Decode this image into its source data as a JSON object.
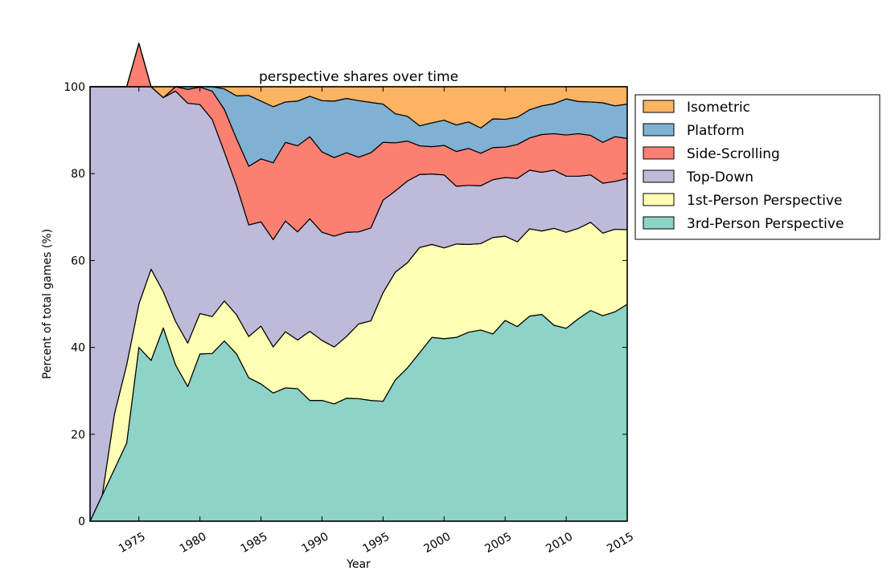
{
  "chart_data": {
    "type": "area",
    "stacked": true,
    "title": "perspective shares over time",
    "xlabel": "Year",
    "ylabel": "Percent of total games (%)",
    "xlim": [
      1971,
      2015
    ],
    "ylim": [
      0,
      100
    ],
    "xticks": [
      1975,
      1980,
      1985,
      1990,
      1995,
      2000,
      2005,
      2010,
      2015
    ],
    "yticks": [
      0,
      20,
      40,
      60,
      80,
      100
    ],
    "grid": false,
    "legend_position": "upper-right-outside",
    "x": [
      1971,
      1972,
      1973,
      1974,
      1975,
      1976,
      1977,
      1978,
      1979,
      1980,
      1981,
      1982,
      1983,
      1984,
      1985,
      1986,
      1987,
      1988,
      1989,
      1990,
      1991,
      1992,
      1993,
      1994,
      1995,
      1996,
      1997,
      1998,
      1999,
      2000,
      2001,
      2002,
      2003,
      2004,
      2005,
      2006,
      2007,
      2008,
      2009,
      2010,
      2011,
      2012,
      2013,
      2014,
      2015
    ],
    "series": [
      {
        "name": "3rd-Person Perspective",
        "color": "#8dd3c7",
        "values": [
          0,
          6,
          12,
          18,
          40,
          37,
          44.5,
          36,
          31,
          38.5,
          38.6,
          41.5,
          38.5,
          33,
          31.6,
          29.5,
          30.7,
          30.5,
          27.8,
          27.8,
          27,
          28.3,
          28.2,
          27.8,
          27.6,
          32.5,
          35.3,
          38.8,
          42.3,
          42,
          42.3,
          43.5,
          44,
          43.1,
          46.2,
          44.8,
          47.2,
          47.6,
          45.1,
          44.4,
          46.6,
          48.5,
          47.3,
          48.2,
          49.9
        ]
      },
      {
        "name": "1st-Person Perspective",
        "color": "#ffffb3",
        "values": [
          0,
          0,
          12.7,
          18,
          10,
          21,
          8.3,
          10,
          10,
          9.3,
          8.5,
          9.2,
          9,
          9.5,
          13.3,
          10.6,
          12.9,
          11.2,
          15.9,
          13.8,
          13.1,
          14.2,
          17.2,
          18.3,
          25,
          24.8,
          24.2,
          24.2,
          21.4,
          20.9,
          21.5,
          20.2,
          19.9,
          22.2,
          19.4,
          19.5,
          20.1,
          19.2,
          22.3,
          22.1,
          20.8,
          20.3,
          19,
          19,
          17.2
        ]
      },
      {
        "name": "Top-Down",
        "color": "#bebada",
        "values": [
          100,
          94,
          75.3,
          64,
          50,
          42,
          44.7,
          53,
          55.2,
          48.1,
          45.4,
          34.3,
          29.7,
          25.7,
          24,
          24.7,
          25.5,
          24.9,
          25.9,
          24.9,
          25.5,
          24,
          21.2,
          21.4,
          21.3,
          18.7,
          18.8,
          16.8,
          16.2,
          16.8,
          13.3,
          13.6,
          13.3,
          13.3,
          13.5,
          14.6,
          13.5,
          13.5,
          13.4,
          12.9,
          12,
          10.9,
          11.5,
          11,
          11.8
        ]
      },
      {
        "name": "Side-Scrolling",
        "color": "#fb8072",
        "values": [
          0,
          0,
          0,
          0,
          10,
          0,
          0,
          1,
          3.2,
          4,
          6.5,
          9.8,
          10.8,
          13.5,
          14.5,
          17.7,
          18.1,
          19.8,
          18.9,
          18.5,
          18.1,
          18.3,
          17.2,
          17.3,
          13.3,
          11.1,
          9.2,
          6.6,
          6.3,
          6.8,
          8,
          8.5,
          7.5,
          7.4,
          7,
          7.8,
          7.4,
          8.7,
          8.4,
          9.5,
          9.8,
          9.1,
          9.4,
          10.3,
          9.2
        ]
      },
      {
        "name": "Platform",
        "color": "#80b1d3",
        "values": [
          0,
          0,
          0,
          0,
          0,
          0,
          0,
          0,
          0.6,
          0.1,
          1,
          4.7,
          9.9,
          16.3,
          13.3,
          12.9,
          9.3,
          10.3,
          9.3,
          11.8,
          13,
          12.5,
          13,
          11.6,
          8.8,
          6.7,
          5.7,
          4.6,
          5.5,
          5.8,
          6.1,
          6.1,
          5.8,
          6.6,
          6.4,
          6.3,
          6.5,
          6.6,
          6.9,
          8.3,
          7.4,
          7.7,
          9.1,
          7.1,
          7.9
        ]
      },
      {
        "name": "Isometric",
        "color": "#fdb462",
        "values": [
          0,
          0,
          0,
          0,
          0,
          0,
          2.5,
          0,
          0,
          0,
          0,
          0.5,
          2.1,
          2,
          3.3,
          4.6,
          3.5,
          3.3,
          2.2,
          3.2,
          3.3,
          2.7,
          3.2,
          3.6,
          4,
          6.2,
          6.8,
          9,
          8.3,
          7.7,
          8.8,
          8.1,
          9.5,
          7.4,
          7.5,
          7,
          5.3,
          4.4,
          3.9,
          2.8,
          3.4,
          3.5,
          3.7,
          4.4,
          4
        ]
      }
    ]
  }
}
